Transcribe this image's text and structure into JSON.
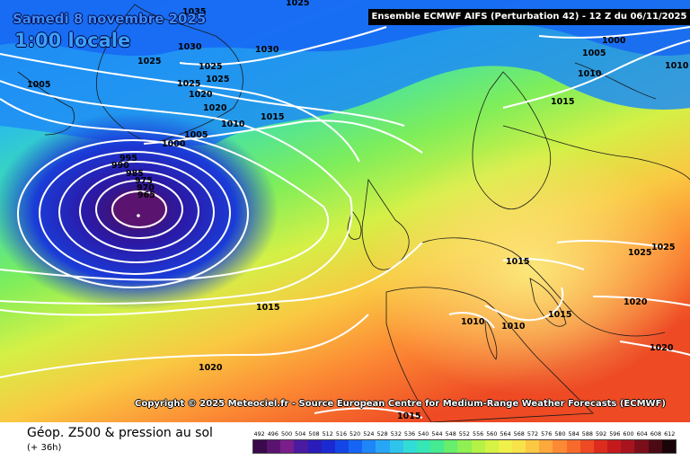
{
  "header": {
    "date": "Samedi 8 novembre 2025",
    "time": "1:00 locale",
    "title": "Ensemble ECMWF AIFS  (Perturbation 42)  -  12 Z du 06/11/2025"
  },
  "copyright": "Copyright © 2025 Meteociel.fr - Source European Centre for Medium-Range Weather Forecasts (ECMWF)",
  "footer": {
    "field": "Géop. Z500 & pression au sol",
    "lead": "(+ 36h)"
  },
  "scale": {
    "ticks": [
      "492",
      "496",
      "500",
      "504",
      "508",
      "512",
      "516",
      "520",
      "524",
      "528",
      "532",
      "536",
      "540",
      "544",
      "548",
      "552",
      "556",
      "560",
      "564",
      "568",
      "572",
      "576",
      "580",
      "584",
      "588",
      "592",
      "596",
      "600",
      "604",
      "608",
      "612"
    ],
    "colors": [
      "#3a0a4c",
      "#5a1470",
      "#7a1e8c",
      "#4a1aa0",
      "#2a1cb8",
      "#1a2ad0",
      "#1446e6",
      "#1664f4",
      "#1e86f8",
      "#28a6f6",
      "#2ec4ec",
      "#32dcd6",
      "#36e6b4",
      "#46ea90",
      "#66ee6c",
      "#8ef052",
      "#b4f246",
      "#d6f244",
      "#f0f04a",
      "#f8e24a",
      "#fac842",
      "#fca83a",
      "#fc8a34",
      "#f86a2c",
      "#ee4a24",
      "#dc2c1e",
      "#c41a1e",
      "#a8141e",
      "#7c0e1a",
      "#4c0a14",
      "#1a0408"
    ]
  },
  "pressure_labels": [
    {
      "text": "1035",
      "name": "isobar-label-1035"
    },
    {
      "text": "1030",
      "name": "isobar-label-1030"
    },
    {
      "text": "1025",
      "name": "isobar-label-1025"
    },
    {
      "text": "1020",
      "name": "isobar-label-1020"
    },
    {
      "text": "1015",
      "name": "isobar-label-1015"
    },
    {
      "text": "1010",
      "name": "isobar-label-1010"
    },
    {
      "text": "1005",
      "name": "isobar-label-1005"
    },
    {
      "text": "1000",
      "name": "isobar-label-1000"
    },
    {
      "text": "995",
      "name": "isobar-label-995"
    },
    {
      "text": "990",
      "name": "isobar-label-990"
    },
    {
      "text": "985",
      "name": "isobar-label-985"
    },
    {
      "text": "975",
      "name": "isobar-label-975"
    },
    {
      "text": "970",
      "name": "isobar-label-970"
    },
    {
      "text": "965",
      "name": "isobar-label-965"
    }
  ]
}
